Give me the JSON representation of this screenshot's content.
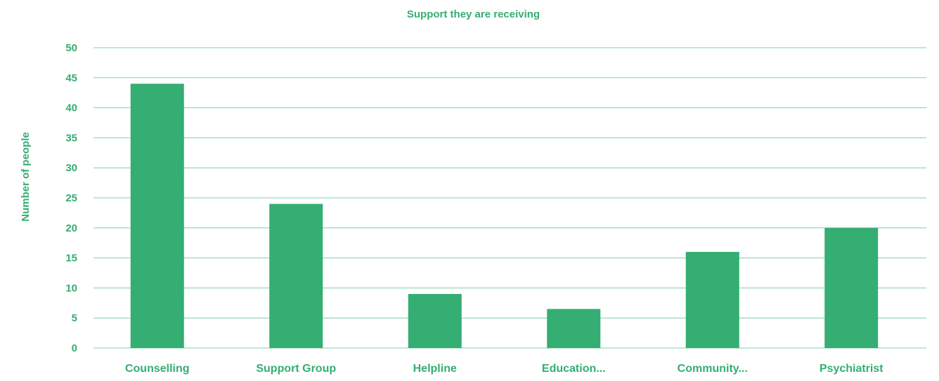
{
  "colors": {
    "bar": "#34ae72",
    "text": "#34ae72",
    "grid": "#7fcfa6",
    "background": "#ffffff"
  },
  "chart_data": {
    "type": "bar",
    "title": "Support they are receiving",
    "xlabel": "",
    "ylabel": "Number of people",
    "categories": [
      "Counselling",
      "Support Group",
      "Helpline",
      "Education...",
      "Community...",
      "Psychiatrist"
    ],
    "values": [
      44,
      24,
      9,
      6.5,
      16,
      20
    ],
    "ylim": [
      0,
      50
    ],
    "yticks": [
      0,
      5,
      10,
      15,
      20,
      25,
      30,
      35,
      40,
      45,
      50
    ],
    "grid": true,
    "legend": "none"
  }
}
